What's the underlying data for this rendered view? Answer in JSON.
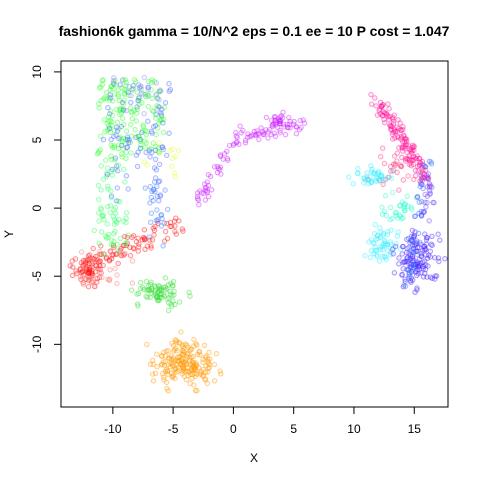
{
  "chart_data": {
    "type": "scatter",
    "title": "fashion6k gamma = 10/N^2 eps = 0.1 ee = 10 P cost = 1.047",
    "xlabel": "X",
    "ylabel": "Y",
    "xlim": [
      -14.3,
      17.8
    ],
    "ylim": [
      -14.6,
      10.8
    ],
    "xticks": [
      -10,
      -5,
      0,
      5,
      10,
      15
    ],
    "yticks": [
      -10,
      -5,
      0,
      5,
      10
    ],
    "grid": false,
    "legend": "none",
    "marker": "open-circle",
    "clusters": [
      {
        "color": "#33ff33",
        "shape": "rect",
        "center": [
          -8.5,
          6.5
        ],
        "spread": [
          2.8,
          3.0
        ],
        "count": 170
      },
      {
        "color": "#33ff66",
        "shape": "rect",
        "center": [
          -10.0,
          1.0
        ],
        "spread": [
          1.2,
          2.2
        ],
        "count": 45
      },
      {
        "color": "#4466ff",
        "shape": "rect",
        "center": [
          -8.0,
          5.0
        ],
        "spread": [
          2.8,
          4.5
        ],
        "count": 85
      },
      {
        "color": "#8a8aff",
        "shape": "rect",
        "center": [
          -8.5,
          8.2
        ],
        "spread": [
          2.5,
          1.4
        ],
        "count": 25
      },
      {
        "color": "#3377ff",
        "shape": "rect",
        "center": [
          -6.2,
          -0.5
        ],
        "spread": [
          0.8,
          2.5
        ],
        "count": 25
      },
      {
        "color": "#ddff33",
        "shape": "rect",
        "center": [
          -6.0,
          4.0
        ],
        "spread": [
          1.5,
          2.0
        ],
        "count": 12
      },
      {
        "color": "#ff1111",
        "shape": "line",
        "start": [
          -13.0,
          -4.5
        ],
        "end": [
          -4.5,
          -1.3
        ],
        "width": 0.8,
        "count": 100
      },
      {
        "color": "#ff1111",
        "shape": "ellipse",
        "center": [
          -12.0,
          -4.6
        ],
        "spread": [
          1.0,
          1.1
        ],
        "count": 45
      },
      {
        "color": "#ff7777",
        "shape": "rect",
        "center": [
          -10.5,
          -4.5
        ],
        "spread": [
          2.2,
          1.4
        ],
        "count": 30
      },
      {
        "color": "#33dd33",
        "shape": "ellipse",
        "center": [
          -6.2,
          -6.2
        ],
        "spread": [
          1.8,
          0.9
        ],
        "count": 75
      },
      {
        "color": "#33ff55",
        "shape": "ellipse",
        "center": [
          -10.0,
          -2.3
        ],
        "spread": [
          1.5,
          0.9
        ],
        "count": 20
      },
      {
        "color": "#ff9900",
        "shape": "ellipse",
        "center": [
          -4.0,
          -11.4
        ],
        "spread": [
          2.3,
          1.6
        ],
        "count": 190
      },
      {
        "color": "#cc22ff",
        "shape": "line",
        "start": [
          -3.0,
          0.3
        ],
        "end": [
          0.5,
          5.5
        ],
        "width": 0.6,
        "count": 45
      },
      {
        "color": "#cc22ff",
        "shape": "line",
        "start": [
          0.8,
          5.2
        ],
        "end": [
          5.8,
          6.2
        ],
        "width": 0.5,
        "count": 50
      },
      {
        "color": "#cc22ff",
        "shape": "ellipse",
        "center": [
          3.8,
          6.4
        ],
        "spread": [
          1.0,
          0.6
        ],
        "count": 25
      },
      {
        "color": "#ff1199",
        "shape": "line",
        "start": [
          12.0,
          7.7
        ],
        "end": [
          16.2,
          2.0
        ],
        "width": 0.7,
        "count": 130
      },
      {
        "color": "#ff3377",
        "shape": "ellipse",
        "center": [
          13.5,
          3.0
        ],
        "spread": [
          1.8,
          1.2
        ],
        "count": 30
      },
      {
        "color": "#33eeff",
        "shape": "ellipse",
        "center": [
          11.5,
          2.3
        ],
        "spread": [
          1.5,
          0.6
        ],
        "count": 40
      },
      {
        "color": "#33eeff",
        "shape": "ellipse",
        "center": [
          12.5,
          -2.7
        ],
        "spread": [
          1.3,
          1.4
        ],
        "count": 55
      },
      {
        "color": "#22ffcc",
        "shape": "ellipse",
        "center": [
          13.8,
          0.0
        ],
        "spread": [
          1.5,
          1.0
        ],
        "count": 30
      },
      {
        "color": "#4422ff",
        "shape": "ellipse",
        "center": [
          15.2,
          -3.6
        ],
        "spread": [
          1.6,
          2.0
        ],
        "count": 130
      },
      {
        "color": "#3366ff",
        "shape": "line",
        "start": [
          16.0,
          3.5
        ],
        "end": [
          14.5,
          -5.8
        ],
        "width": 0.6,
        "count": 45
      },
      {
        "color": "#6644ff",
        "shape": "ellipse",
        "center": [
          16.0,
          1.0
        ],
        "spread": [
          0.7,
          1.6
        ],
        "count": 25
      }
    ]
  }
}
